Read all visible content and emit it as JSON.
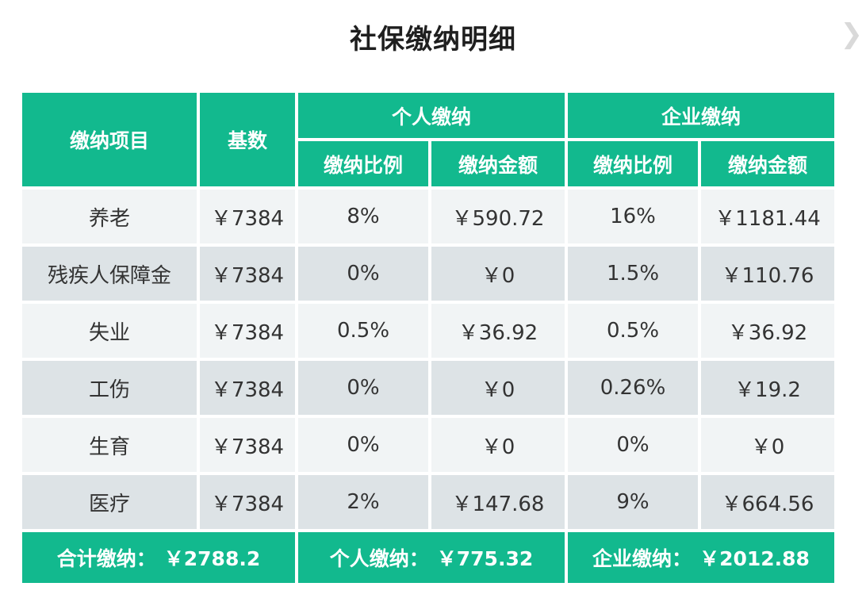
{
  "title": "社保缴纳明细",
  "header": {
    "item": "缴纳项目",
    "base": "基数",
    "personal": "个人缴纳",
    "company": "企业缴纳",
    "rate": "缴纳比例",
    "amount": "缴纳金额"
  },
  "rows": [
    {
      "item": "养老",
      "base": "￥7384",
      "p_rate": "8%",
      "p_amount": "￥590.72",
      "c_rate": "16%",
      "c_amount": "￥1181.44"
    },
    {
      "item": "残疾人保障金",
      "base": "￥7384",
      "p_rate": "0%",
      "p_amount": "￥0",
      "c_rate": "1.5%",
      "c_amount": "￥110.76"
    },
    {
      "item": "失业",
      "base": "￥7384",
      "p_rate": "0.5%",
      "p_amount": "￥36.92",
      "c_rate": "0.5%",
      "c_amount": "￥36.92"
    },
    {
      "item": "工伤",
      "base": "￥7384",
      "p_rate": "0%",
      "p_amount": "￥0",
      "c_rate": "0.26%",
      "c_amount": "￥19.2"
    },
    {
      "item": "生育",
      "base": "￥7384",
      "p_rate": "0%",
      "p_amount": "￥0",
      "c_rate": "0%",
      "c_amount": "￥0"
    },
    {
      "item": "医疗",
      "base": "￥7384",
      "p_rate": "2%",
      "p_amount": "￥147.68",
      "c_rate": "9%",
      "c_amount": "￥664.56"
    }
  ],
  "footer": {
    "total_label": "合计缴纳：",
    "total_value": "￥2788.2",
    "personal_label": "个人缴纳：",
    "personal_value": "￥775.32",
    "company_label": "企业缴纳：",
    "company_value": "￥2012.88"
  },
  "colors": {
    "accent": "#12b98e",
    "row_light": "#f1f4f5",
    "row_dark": "#dde3e6"
  },
  "icons": {
    "next": "chevron-right-icon"
  }
}
